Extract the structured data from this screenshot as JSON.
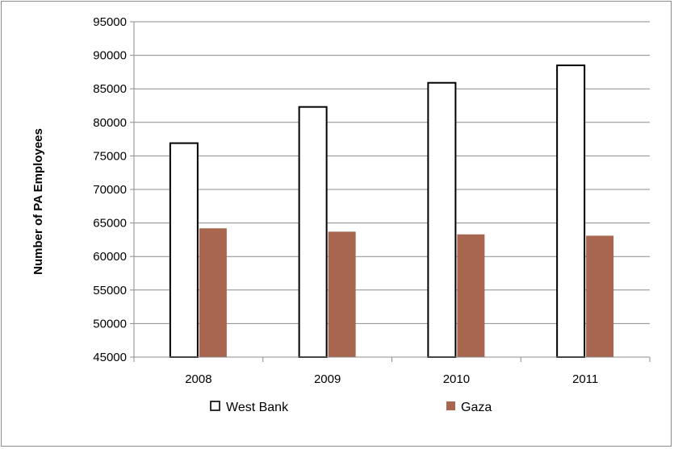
{
  "chart_data": {
    "type": "bar",
    "title": "",
    "xlabel": "",
    "ylabel": "Number of PA Employees",
    "categories": [
      "2008",
      "2009",
      "2010",
      "2011"
    ],
    "series": [
      {
        "name": "West Bank",
        "values": [
          76900,
          82300,
          85900,
          88500
        ]
      },
      {
        "name": "Gaza",
        "values": [
          64200,
          63700,
          63300,
          63100
        ]
      }
    ],
    "ylim": [
      45000,
      95000
    ],
    "yticks": [
      "45000",
      "50000",
      "55000",
      "60000",
      "65000",
      "70000",
      "75000",
      "80000",
      "85000",
      "90000",
      "95000"
    ],
    "grid": true,
    "legend_position": "bottom"
  },
  "colors": {
    "west_bank_fill": "#ffffff",
    "west_bank_stroke": "#000000",
    "gaza_fill": "#a86650",
    "grid": "#8c8c8c"
  }
}
